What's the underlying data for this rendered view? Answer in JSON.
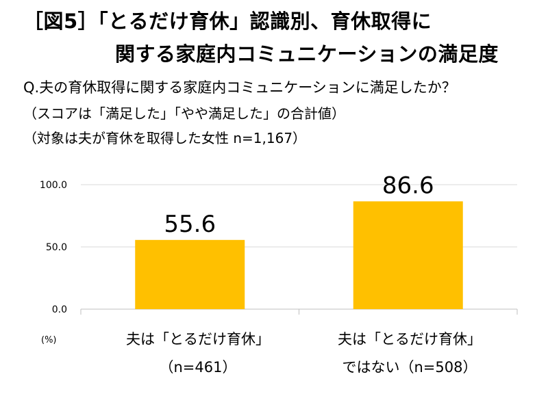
{
  "title": {
    "line1": "［図5］「とるだけ育休」認識別、育休取得に",
    "line2": "関する家庭内コミュニケーションの満足度"
  },
  "question": "Q.夫の育休取得に関する家庭内コミュニケーションに満足したか？",
  "notes": [
    "（スコアは「満足した」「やや満足した」の合計値）",
    "（対象は夫が育休を取得した女性 n=1,167）"
  ],
  "unit_label": "(%)",
  "chart_data": {
    "type": "bar",
    "categories": [
      [
        "夫は「とるだけ育休」",
        "（n=461）"
      ],
      [
        "夫は「とるだけ育休」",
        "ではない（n=508）"
      ]
    ],
    "values": [
      55.6,
      86.6
    ],
    "value_labels": [
      "55.6",
      "86.6"
    ],
    "ylim": [
      0,
      100
    ],
    "yticks": [
      0,
      50,
      100
    ],
    "ytick_labels": [
      "0.0",
      "50.0",
      "100.0"
    ],
    "grid": true,
    "bar_color": "#FFC000",
    "grid_color": "#d9d9d9"
  }
}
